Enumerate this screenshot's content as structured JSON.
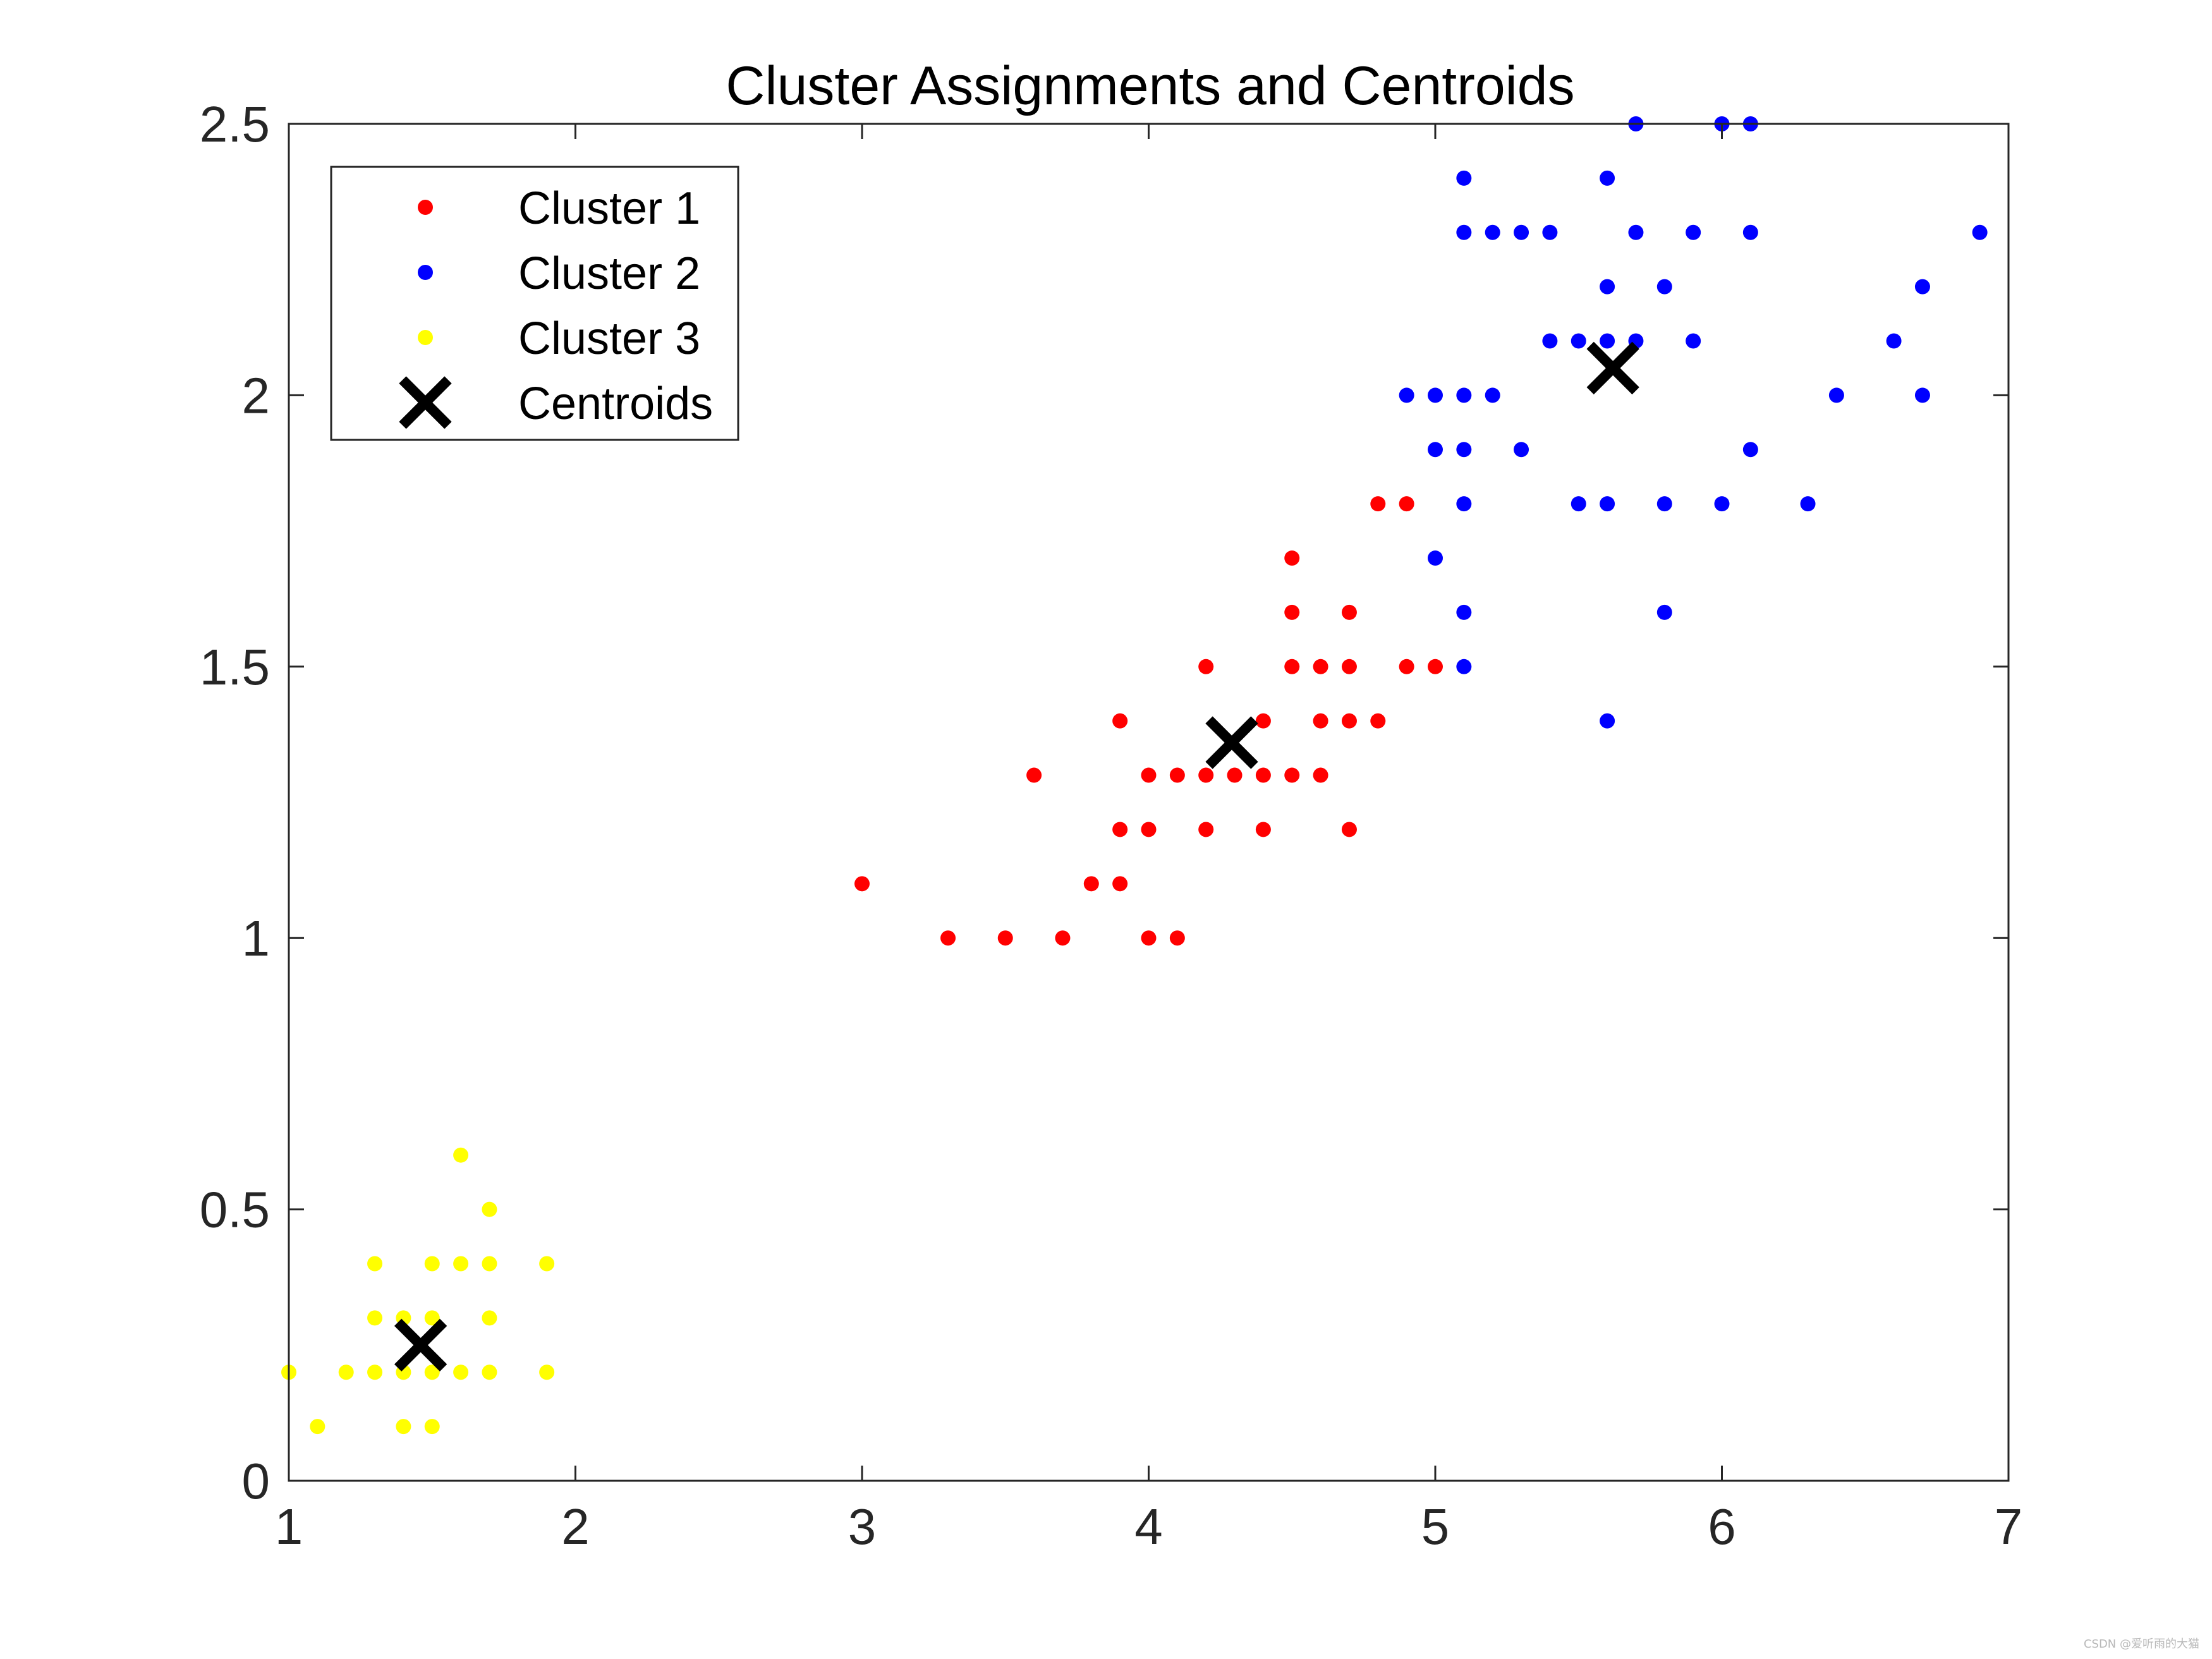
{
  "chart_data": {
    "type": "scatter",
    "title": "Cluster Assignments and Centroids",
    "xlabel": "",
    "ylabel": "",
    "xlim": [
      1,
      7
    ],
    "ylim": [
      0,
      2.5
    ],
    "xticks": [
      1,
      2,
      3,
      4,
      5,
      6,
      7
    ],
    "xtick_labels": [
      "1",
      "2",
      "3",
      "4",
      "5",
      "6",
      "7"
    ],
    "yticks": [
      0,
      0.5,
      1,
      1.5,
      2,
      2.5
    ],
    "ytick_labels": [
      "0",
      "0.5",
      "1",
      "1.5",
      "2",
      "2.5"
    ],
    "grid": false,
    "legend_position": "top-left",
    "series": [
      {
        "name": "Cluster 1",
        "color": "#ff0000",
        "marker": "dot",
        "points": [
          [
            3.0,
            1.1
          ],
          [
            3.3,
            1.0
          ],
          [
            3.5,
            1.0
          ],
          [
            3.6,
            1.3
          ],
          [
            3.7,
            1.0
          ],
          [
            3.8,
            1.1
          ],
          [
            3.9,
            1.1
          ],
          [
            3.9,
            1.2
          ],
          [
            3.9,
            1.4
          ],
          [
            4.0,
            1.0
          ],
          [
            4.0,
            1.2
          ],
          [
            4.0,
            1.3
          ],
          [
            4.1,
            1.0
          ],
          [
            4.1,
            1.3
          ],
          [
            4.2,
            1.2
          ],
          [
            4.2,
            1.3
          ],
          [
            4.2,
            1.5
          ],
          [
            4.3,
            1.3
          ],
          [
            4.4,
            1.2
          ],
          [
            4.4,
            1.3
          ],
          [
            4.4,
            1.4
          ],
          [
            4.5,
            1.3
          ],
          [
            4.5,
            1.5
          ],
          [
            4.5,
            1.6
          ],
          [
            4.5,
            1.7
          ],
          [
            4.6,
            1.3
          ],
          [
            4.6,
            1.4
          ],
          [
            4.6,
            1.5
          ],
          [
            4.7,
            1.2
          ],
          [
            4.7,
            1.4
          ],
          [
            4.7,
            1.5
          ],
          [
            4.7,
            1.6
          ],
          [
            4.8,
            1.4
          ],
          [
            4.8,
            1.8
          ],
          [
            4.9,
            1.5
          ],
          [
            4.9,
            1.8
          ],
          [
            5.0,
            1.5
          ]
        ]
      },
      {
        "name": "Cluster 2",
        "color": "#0000ff",
        "marker": "dot",
        "points": [
          [
            4.9,
            2.0
          ],
          [
            5.0,
            1.7
          ],
          [
            5.0,
            1.9
          ],
          [
            5.0,
            2.0
          ],
          [
            5.1,
            1.5
          ],
          [
            5.1,
            1.6
          ],
          [
            5.1,
            1.8
          ],
          [
            5.1,
            1.9
          ],
          [
            5.1,
            2.0
          ],
          [
            5.1,
            2.3
          ],
          [
            5.1,
            2.4
          ],
          [
            5.2,
            2.0
          ],
          [
            5.2,
            2.3
          ],
          [
            5.3,
            1.9
          ],
          [
            5.3,
            2.3
          ],
          [
            5.4,
            2.1
          ],
          [
            5.4,
            2.3
          ],
          [
            5.5,
            1.8
          ],
          [
            5.5,
            2.1
          ],
          [
            5.6,
            1.4
          ],
          [
            5.6,
            1.8
          ],
          [
            5.6,
            2.1
          ],
          [
            5.6,
            2.2
          ],
          [
            5.6,
            2.4
          ],
          [
            5.7,
            2.1
          ],
          [
            5.7,
            2.3
          ],
          [
            5.7,
            2.5
          ],
          [
            5.8,
            1.6
          ],
          [
            5.8,
            1.8
          ],
          [
            5.8,
            2.2
          ],
          [
            5.9,
            2.1
          ],
          [
            5.9,
            2.3
          ],
          [
            6.0,
            1.8
          ],
          [
            6.0,
            2.5
          ],
          [
            6.1,
            1.9
          ],
          [
            6.1,
            2.3
          ],
          [
            6.1,
            2.5
          ],
          [
            6.3,
            1.8
          ],
          [
            6.4,
            2.0
          ],
          [
            6.6,
            2.1
          ],
          [
            6.7,
            2.0
          ],
          [
            6.7,
            2.2
          ],
          [
            6.9,
            2.3
          ]
        ]
      },
      {
        "name": "Cluster 3",
        "color": "#ffff00",
        "marker": "dot",
        "points": [
          [
            1.0,
            0.2
          ],
          [
            1.1,
            0.1
          ],
          [
            1.2,
            0.2
          ],
          [
            1.3,
            0.2
          ],
          [
            1.3,
            0.3
          ],
          [
            1.3,
            0.4
          ],
          [
            1.4,
            0.1
          ],
          [
            1.4,
            0.2
          ],
          [
            1.4,
            0.3
          ],
          [
            1.5,
            0.1
          ],
          [
            1.5,
            0.2
          ],
          [
            1.5,
            0.3
          ],
          [
            1.5,
            0.4
          ],
          [
            1.6,
            0.2
          ],
          [
            1.6,
            0.4
          ],
          [
            1.6,
            0.6
          ],
          [
            1.7,
            0.2
          ],
          [
            1.7,
            0.3
          ],
          [
            1.7,
            0.4
          ],
          [
            1.7,
            0.5
          ],
          [
            1.9,
            0.2
          ],
          [
            1.9,
            0.4
          ]
        ]
      },
      {
        "name": "Centroids",
        "color": "#000000",
        "marker": "x",
        "points": [
          [
            4.29,
            1.36
          ],
          [
            5.62,
            2.05
          ],
          [
            1.46,
            0.25
          ]
        ]
      }
    ]
  },
  "watermark": "CSDN @爱听雨的大猫"
}
